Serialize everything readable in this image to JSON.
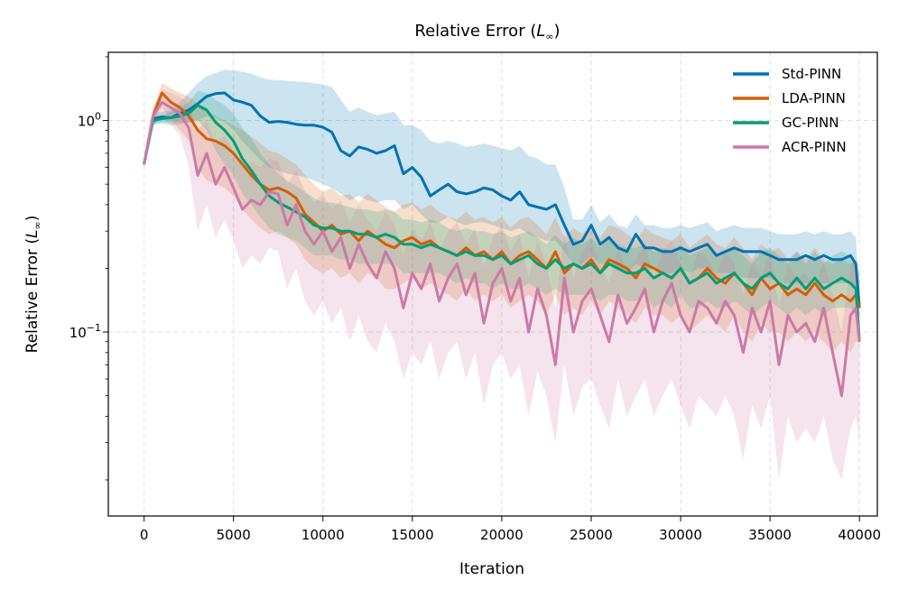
{
  "chart_data": {
    "type": "line",
    "title": "Relative Error (L∞)",
    "title_main": "Relative Error (",
    "title_var": "L",
    "title_sub": "∞",
    "title_close": ")",
    "xlabel": "Iteration",
    "ylabel": "Relative Error (L∞)",
    "ylabel_main": "Relative Error (",
    "ylabel_var": "L",
    "ylabel_sub": "∞",
    "ylabel_close": ")",
    "xlim": [
      -2000,
      41000
    ],
    "ylim": [
      0.0135,
      2.1
    ],
    "yscale": "log",
    "grid": true,
    "legend_position": "top-right",
    "xticks": [
      0,
      5000,
      10000,
      15000,
      20000,
      25000,
      30000,
      35000,
      40000
    ],
    "xtick_labels": [
      "0",
      "5000",
      "10000",
      "15000",
      "20000",
      "25000",
      "30000",
      "35000",
      "40000"
    ],
    "yticks": [
      {
        "value": 1.0,
        "base": "10",
        "exp": "0"
      },
      {
        "value": 0.1,
        "base": "10",
        "exp": "−1"
      }
    ],
    "x": [
      0,
      500,
      1000,
      1500,
      2000,
      2500,
      3000,
      3500,
      4000,
      4500,
      5000,
      5500,
      6000,
      6500,
      7000,
      7500,
      8000,
      8500,
      9000,
      9500,
      10000,
      10500,
      11000,
      11500,
      12000,
      12500,
      13000,
      13500,
      14000,
      14500,
      15000,
      15500,
      16000,
      16500,
      17000,
      17500,
      18000,
      18500,
      19000,
      19500,
      20000,
      20500,
      21000,
      21500,
      22000,
      22500,
      23000,
      23500,
      24000,
      24500,
      25000,
      25500,
      26000,
      26500,
      27000,
      27500,
      28000,
      28500,
      29000,
      29500,
      30000,
      30500,
      31000,
      31500,
      32000,
      32500,
      33000,
      33500,
      34000,
      34500,
      35000,
      35500,
      36000,
      36500,
      37000,
      37500,
      38000,
      38500,
      39000,
      39500,
      39800,
      40000
    ],
    "series": [
      {
        "name": "Std-PINN",
        "color": "#0072b2",
        "values": [
          0.62,
          1.02,
          1.04,
          1.03,
          1.08,
          1.12,
          1.2,
          1.3,
          1.34,
          1.35,
          1.25,
          1.22,
          1.18,
          1.05,
          0.98,
          0.99,
          0.98,
          0.96,
          0.95,
          0.95,
          0.93,
          0.88,
          0.72,
          0.68,
          0.75,
          0.73,
          0.7,
          0.72,
          0.76,
          0.56,
          0.6,
          0.54,
          0.44,
          0.47,
          0.5,
          0.46,
          0.45,
          0.46,
          0.48,
          0.47,
          0.44,
          0.42,
          0.46,
          0.4,
          0.39,
          0.38,
          0.4,
          0.32,
          0.26,
          0.27,
          0.32,
          0.26,
          0.28,
          0.25,
          0.24,
          0.29,
          0.25,
          0.25,
          0.24,
          0.24,
          0.25,
          0.24,
          0.25,
          0.26,
          0.23,
          0.24,
          0.25,
          0.24,
          0.24,
          0.24,
          0.23,
          0.22,
          0.22,
          0.22,
          0.23,
          0.22,
          0.23,
          0.22,
          0.22,
          0.23,
          0.21,
          0.13
        ],
        "lower": [
          0.6,
          0.95,
          0.97,
          0.95,
          0.96,
          0.98,
          1.0,
          1.05,
          1.02,
          0.98,
          0.9,
          0.8,
          0.72,
          0.65,
          0.6,
          0.58,
          0.56,
          0.55,
          0.54,
          0.52,
          0.5,
          0.48,
          0.45,
          0.42,
          0.44,
          0.42,
          0.41,
          0.42,
          0.42,
          0.38,
          0.4,
          0.36,
          0.33,
          0.33,
          0.35,
          0.33,
          0.32,
          0.33,
          0.33,
          0.32,
          0.31,
          0.3,
          0.31,
          0.29,
          0.28,
          0.27,
          0.27,
          0.24,
          0.21,
          0.21,
          0.23,
          0.21,
          0.21,
          0.2,
          0.19,
          0.21,
          0.2,
          0.2,
          0.19,
          0.19,
          0.2,
          0.19,
          0.2,
          0.2,
          0.19,
          0.19,
          0.19,
          0.18,
          0.18,
          0.18,
          0.18,
          0.17,
          0.17,
          0.17,
          0.17,
          0.17,
          0.17,
          0.17,
          0.17,
          0.17,
          0.16,
          0.12
        ],
        "upper": [
          0.64,
          1.08,
          1.1,
          1.12,
          1.22,
          1.35,
          1.5,
          1.62,
          1.68,
          1.74,
          1.72,
          1.7,
          1.66,
          1.6,
          1.56,
          1.55,
          1.54,
          1.53,
          1.52,
          1.5,
          1.48,
          1.44,
          1.25,
          1.1,
          1.15,
          1.1,
          1.06,
          1.08,
          1.1,
          0.95,
          0.95,
          0.9,
          0.8,
          0.78,
          0.8,
          0.78,
          0.75,
          0.76,
          0.78,
          0.76,
          0.74,
          0.72,
          0.76,
          0.68,
          0.66,
          0.62,
          0.62,
          0.48,
          0.34,
          0.34,
          0.4,
          0.33,
          0.36,
          0.32,
          0.31,
          0.36,
          0.32,
          0.32,
          0.31,
          0.31,
          0.32,
          0.31,
          0.32,
          0.33,
          0.3,
          0.31,
          0.32,
          0.31,
          0.31,
          0.31,
          0.3,
          0.29,
          0.29,
          0.29,
          0.3,
          0.29,
          0.3,
          0.29,
          0.29,
          0.3,
          0.28,
          0.15
        ]
      },
      {
        "name": "LDA-PINN",
        "color": "#d55e00",
        "values": [
          0.62,
          1.05,
          1.35,
          1.22,
          1.15,
          1.05,
          0.9,
          0.82,
          0.8,
          0.76,
          0.7,
          0.62,
          0.55,
          0.5,
          0.47,
          0.48,
          0.46,
          0.43,
          0.36,
          0.33,
          0.3,
          0.32,
          0.29,
          0.3,
          0.27,
          0.3,
          0.28,
          0.26,
          0.25,
          0.27,
          0.28,
          0.26,
          0.27,
          0.25,
          0.24,
          0.23,
          0.25,
          0.23,
          0.24,
          0.22,
          0.24,
          0.21,
          0.23,
          0.24,
          0.22,
          0.2,
          0.24,
          0.19,
          0.21,
          0.2,
          0.22,
          0.19,
          0.22,
          0.21,
          0.2,
          0.18,
          0.21,
          0.2,
          0.19,
          0.18,
          0.2,
          0.17,
          0.18,
          0.2,
          0.18,
          0.17,
          0.19,
          0.17,
          0.15,
          0.18,
          0.16,
          0.17,
          0.15,
          0.16,
          0.15,
          0.17,
          0.15,
          0.14,
          0.15,
          0.14,
          0.15,
          0.13
        ],
        "lower": [
          0.6,
          0.95,
          1.15,
          1.0,
          0.9,
          0.8,
          0.6,
          0.52,
          0.5,
          0.48,
          0.44,
          0.38,
          0.34,
          0.31,
          0.29,
          0.3,
          0.28,
          0.26,
          0.22,
          0.2,
          0.19,
          0.2,
          0.18,
          0.19,
          0.17,
          0.19,
          0.18,
          0.16,
          0.16,
          0.17,
          0.18,
          0.16,
          0.17,
          0.16,
          0.15,
          0.14,
          0.16,
          0.14,
          0.15,
          0.14,
          0.15,
          0.13,
          0.14,
          0.15,
          0.14,
          0.12,
          0.15,
          0.12,
          0.13,
          0.12,
          0.14,
          0.12,
          0.14,
          0.13,
          0.12,
          0.11,
          0.13,
          0.12,
          0.12,
          0.11,
          0.12,
          0.1,
          0.11,
          0.12,
          0.11,
          0.1,
          0.12,
          0.1,
          0.09,
          0.11,
          0.1,
          0.1,
          0.09,
          0.1,
          0.09,
          0.1,
          0.09,
          0.08,
          0.09,
          0.08,
          0.09,
          0.09
        ],
        "upper": [
          0.64,
          1.12,
          1.5,
          1.42,
          1.35,
          1.3,
          1.2,
          1.12,
          1.05,
          1.0,
          0.95,
          0.9,
          0.84,
          0.78,
          0.72,
          0.7,
          0.66,
          0.62,
          0.55,
          0.5,
          0.46,
          0.48,
          0.44,
          0.45,
          0.41,
          0.45,
          0.42,
          0.39,
          0.37,
          0.4,
          0.41,
          0.38,
          0.4,
          0.37,
          0.35,
          0.34,
          0.37,
          0.34,
          0.35,
          0.33,
          0.35,
          0.31,
          0.34,
          0.35,
          0.32,
          0.29,
          0.35,
          0.28,
          0.31,
          0.29,
          0.32,
          0.28,
          0.32,
          0.31,
          0.29,
          0.27,
          0.31,
          0.29,
          0.28,
          0.27,
          0.29,
          0.25,
          0.27,
          0.29,
          0.26,
          0.25,
          0.28,
          0.25,
          0.22,
          0.26,
          0.24,
          0.25,
          0.22,
          0.24,
          0.22,
          0.25,
          0.22,
          0.21,
          0.22,
          0.21,
          0.22,
          0.19
        ]
      },
      {
        "name": "GC-PINN",
        "color": "#009e73",
        "values": [
          0.62,
          1.0,
          1.02,
          1.03,
          1.05,
          1.08,
          1.18,
          1.12,
          0.98,
          0.9,
          0.8,
          0.66,
          0.58,
          0.5,
          0.44,
          0.41,
          0.39,
          0.37,
          0.35,
          0.32,
          0.31,
          0.31,
          0.3,
          0.3,
          0.29,
          0.29,
          0.28,
          0.29,
          0.28,
          0.26,
          0.26,
          0.25,
          0.26,
          0.25,
          0.24,
          0.23,
          0.24,
          0.23,
          0.23,
          0.22,
          0.23,
          0.21,
          0.22,
          0.23,
          0.21,
          0.2,
          0.22,
          0.2,
          0.21,
          0.2,
          0.21,
          0.19,
          0.21,
          0.2,
          0.19,
          0.19,
          0.2,
          0.18,
          0.19,
          0.18,
          0.2,
          0.17,
          0.18,
          0.19,
          0.17,
          0.18,
          0.19,
          0.17,
          0.16,
          0.18,
          0.19,
          0.17,
          0.16,
          0.18,
          0.16,
          0.18,
          0.16,
          0.17,
          0.18,
          0.17,
          0.16,
          0.09
        ],
        "lower": [
          0.6,
          0.96,
          0.98,
          0.98,
          0.98,
          0.98,
          1.0,
          0.9,
          0.72,
          0.62,
          0.55,
          0.45,
          0.4,
          0.35,
          0.31,
          0.29,
          0.28,
          0.27,
          0.25,
          0.23,
          0.23,
          0.23,
          0.22,
          0.22,
          0.21,
          0.21,
          0.21,
          0.21,
          0.21,
          0.19,
          0.19,
          0.19,
          0.19,
          0.19,
          0.18,
          0.17,
          0.18,
          0.17,
          0.17,
          0.16,
          0.17,
          0.16,
          0.16,
          0.17,
          0.16,
          0.15,
          0.16,
          0.15,
          0.15,
          0.15,
          0.15,
          0.14,
          0.15,
          0.15,
          0.14,
          0.14,
          0.15,
          0.13,
          0.14,
          0.13,
          0.15,
          0.13,
          0.13,
          0.14,
          0.13,
          0.13,
          0.14,
          0.13,
          0.12,
          0.13,
          0.14,
          0.13,
          0.12,
          0.13,
          0.12,
          0.13,
          0.12,
          0.13,
          0.13,
          0.13,
          0.12,
          0.08
        ],
        "upper": [
          0.64,
          1.04,
          1.06,
          1.1,
          1.15,
          1.22,
          1.38,
          1.35,
          1.25,
          1.18,
          1.08,
          0.92,
          0.82,
          0.7,
          0.62,
          0.56,
          0.52,
          0.49,
          0.46,
          0.43,
          0.41,
          0.41,
          0.4,
          0.39,
          0.38,
          0.38,
          0.37,
          0.38,
          0.37,
          0.34,
          0.34,
          0.33,
          0.34,
          0.33,
          0.31,
          0.3,
          0.31,
          0.3,
          0.3,
          0.29,
          0.3,
          0.28,
          0.29,
          0.3,
          0.28,
          0.26,
          0.29,
          0.26,
          0.28,
          0.26,
          0.28,
          0.25,
          0.28,
          0.26,
          0.25,
          0.25,
          0.26,
          0.24,
          0.25,
          0.24,
          0.26,
          0.23,
          0.24,
          0.25,
          0.23,
          0.24,
          0.25,
          0.23,
          0.21,
          0.24,
          0.25,
          0.23,
          0.21,
          0.24,
          0.21,
          0.24,
          0.21,
          0.23,
          0.24,
          0.23,
          0.21,
          0.11
        ]
      },
      {
        "name": "ACR-PINN",
        "color": "#cc79a7",
        "values": [
          0.62,
          1.05,
          1.22,
          1.15,
          1.08,
          0.92,
          0.55,
          0.7,
          0.5,
          0.6,
          0.48,
          0.38,
          0.42,
          0.4,
          0.46,
          0.45,
          0.32,
          0.4,
          0.3,
          0.26,
          0.3,
          0.24,
          0.28,
          0.2,
          0.26,
          0.21,
          0.18,
          0.24,
          0.2,
          0.13,
          0.19,
          0.16,
          0.21,
          0.14,
          0.18,
          0.21,
          0.15,
          0.19,
          0.11,
          0.17,
          0.2,
          0.14,
          0.18,
          0.1,
          0.16,
          0.12,
          0.07,
          0.18,
          0.1,
          0.14,
          0.16,
          0.12,
          0.09,
          0.15,
          0.11,
          0.13,
          0.16,
          0.1,
          0.14,
          0.17,
          0.12,
          0.1,
          0.14,
          0.13,
          0.11,
          0.14,
          0.12,
          0.08,
          0.13,
          0.1,
          0.14,
          0.07,
          0.12,
          0.1,
          0.11,
          0.09,
          0.13,
          0.08,
          0.05,
          0.12,
          0.13,
          0.09
        ],
        "lower": [
          0.6,
          0.95,
          1.05,
          0.95,
          0.85,
          0.6,
          0.3,
          0.4,
          0.28,
          0.34,
          0.27,
          0.2,
          0.23,
          0.21,
          0.25,
          0.24,
          0.16,
          0.2,
          0.14,
          0.12,
          0.14,
          0.11,
          0.13,
          0.09,
          0.12,
          0.09,
          0.08,
          0.11,
          0.09,
          0.06,
          0.08,
          0.07,
          0.09,
          0.06,
          0.08,
          0.09,
          0.06,
          0.08,
          0.045,
          0.07,
          0.08,
          0.06,
          0.07,
          0.04,
          0.065,
          0.05,
          0.03,
          0.07,
          0.04,
          0.055,
          0.06,
          0.045,
          0.035,
          0.06,
          0.04,
          0.05,
          0.06,
          0.04,
          0.05,
          0.06,
          0.045,
          0.035,
          0.05,
          0.045,
          0.04,
          0.05,
          0.04,
          0.025,
          0.045,
          0.035,
          0.05,
          0.02,
          0.04,
          0.03,
          0.035,
          0.03,
          0.04,
          0.025,
          0.02,
          0.035,
          0.04,
          0.03
        ],
        "upper": [
          0.64,
          1.15,
          1.4,
          1.35,
          1.3,
          1.2,
          0.9,
          1.0,
          0.78,
          0.85,
          0.72,
          0.6,
          0.64,
          0.6,
          0.66,
          0.64,
          0.5,
          0.58,
          0.46,
          0.41,
          0.45,
          0.38,
          0.42,
          0.33,
          0.4,
          0.34,
          0.3,
          0.37,
          0.32,
          0.23,
          0.31,
          0.27,
          0.33,
          0.24,
          0.3,
          0.33,
          0.26,
          0.31,
          0.2,
          0.28,
          0.32,
          0.24,
          0.29,
          0.18,
          0.27,
          0.21,
          0.13,
          0.29,
          0.18,
          0.24,
          0.27,
          0.21,
          0.17,
          0.25,
          0.19,
          0.22,
          0.26,
          0.18,
          0.24,
          0.27,
          0.21,
          0.18,
          0.24,
          0.22,
          0.19,
          0.24,
          0.21,
          0.15,
          0.22,
          0.18,
          0.24,
          0.13,
          0.21,
          0.18,
          0.19,
          0.16,
          0.22,
          0.15,
          0.1,
          0.21,
          0.22,
          0.16
        ]
      }
    ]
  }
}
